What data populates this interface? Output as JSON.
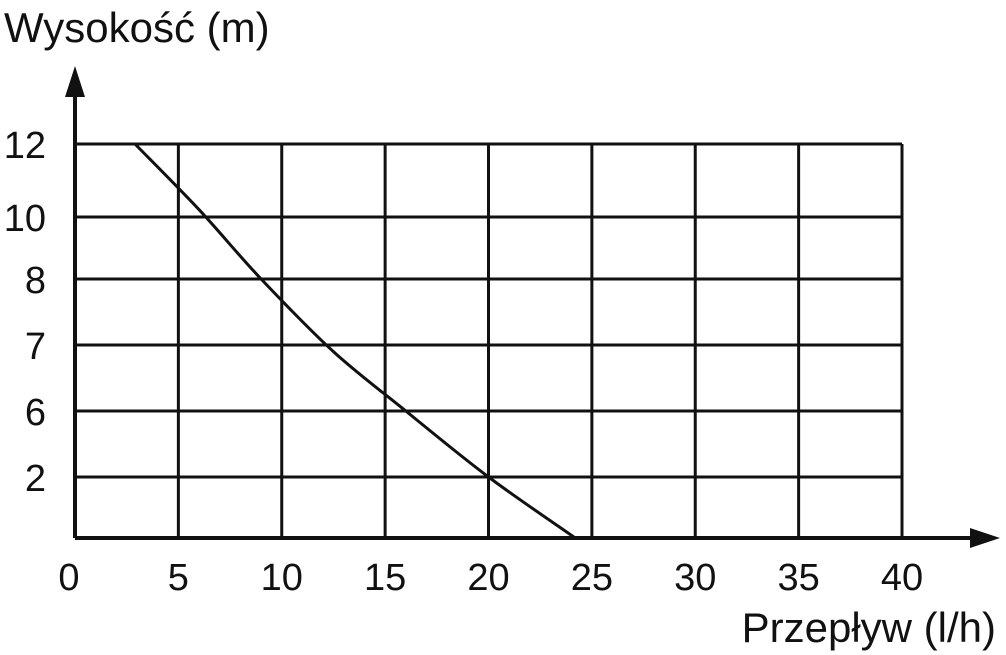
{
  "chart_data": {
    "type": "line",
    "title": "",
    "ylabel": "Wysokość (m)",
    "xlabel": "Przepływ (l/h)",
    "x_ticks": [
      "0",
      "5",
      "10",
      "15",
      "20",
      "25",
      "30",
      "35",
      "40"
    ],
    "y_ticks": [
      "2",
      "6",
      "7",
      "8",
      "10",
      "12"
    ],
    "xlim": [
      0,
      40
    ],
    "y_note": "y tick labels are evenly spaced categories: 0(base), 2, 6, 7, 8, 10, 12",
    "grid": true,
    "series": [
      {
        "points": [
          {
            "x": 2.9,
            "y": 12
          },
          {
            "x": 6,
            "y": 10.2
          },
          {
            "x": 9,
            "y": 8
          },
          {
            "x": 12.5,
            "y": 6.9
          },
          {
            "x": 16,
            "y": 6
          },
          {
            "x": 20,
            "y": 2
          },
          {
            "x": 24.2,
            "y": 0
          }
        ]
      }
    ],
    "colors": {
      "line": "#111111",
      "background": "#ffffff"
    }
  }
}
